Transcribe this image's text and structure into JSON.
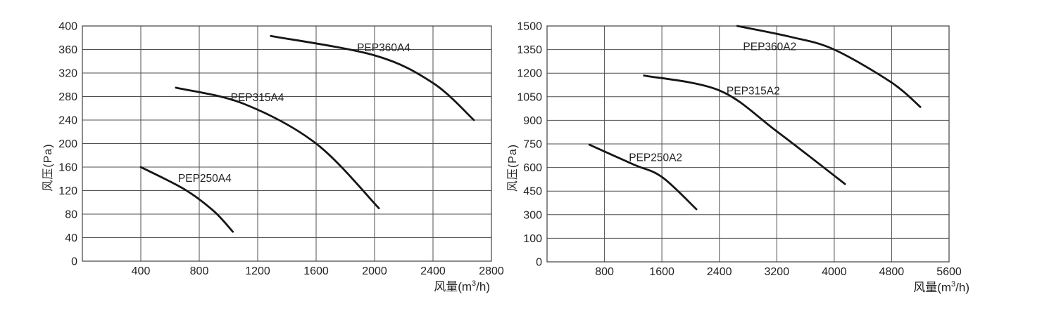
{
  "style": {
    "background": "#ffffff",
    "grid_color": "#4f4f4f",
    "border_color": "#3f3f3f",
    "text_color": "#232323",
    "curve_color": "#161616"
  },
  "chart_data": [
    {
      "type": "line",
      "title": "",
      "xlabel": "风量(m³/h)",
      "xlabel_parts": {
        "prefix": "风量(m",
        "sup": "3",
        "suffix": "/h)"
      },
      "ylabel": "风压(Pa)",
      "xlim": [
        0,
        2800
      ],
      "ylim": [
        0,
        400
      ],
      "grid": true,
      "legend_position": "inline-curve-labels",
      "x_tick_values": [
        400,
        800,
        1200,
        1600,
        2000,
        2400,
        2800
      ],
      "x_tick_labels": [
        "400",
        "800",
        "1200",
        "1600",
        "2000",
        "2400",
        "2800"
      ],
      "y_tick_labels": [
        "0",
        "40",
        "80",
        "120",
        "160",
        "200",
        "240",
        "280",
        "320",
        "360",
        "400"
      ],
      "series": [
        {
          "name": "PEP250A4",
          "points": [
            [
              400,
              160
            ],
            [
              700,
              122
            ],
            [
              900,
              85
            ],
            [
              1030,
              50
            ]
          ],
          "label_xy": [
            655,
            135
          ]
        },
        {
          "name": "PEP315A4",
          "points": [
            [
              640,
              295
            ],
            [
              1100,
              268
            ],
            [
              1600,
              200
            ],
            [
              2030,
              90
            ]
          ],
          "label_xy": [
            1015,
            272
          ]
        },
        {
          "name": "PEP360A4",
          "points": [
            [
              1290,
              383
            ],
            [
              2000,
              350
            ],
            [
              2400,
              303
            ],
            [
              2680,
              240
            ]
          ],
          "label_xy": [
            1880,
            357
          ]
        }
      ]
    },
    {
      "type": "line",
      "title": "",
      "xlabel": "风量(m³/h)",
      "xlabel_parts": {
        "prefix": "风量(m",
        "sup": "3",
        "suffix": "/h)"
      },
      "ylabel": "风压(Pa)",
      "xlim": [
        0,
        5600
      ],
      "ylim": [
        0,
        1500
      ],
      "grid": true,
      "legend_position": "inline-curve-labels",
      "x_tick_values": [
        800,
        1600,
        2400,
        3200,
        4000,
        4800,
        5600
      ],
      "x_tick_labels": [
        "800",
        "1600",
        "2400",
        "3200",
        "4000",
        "4800",
        "5600"
      ],
      "y_tick_labels": [
        "0",
        "100",
        "300",
        "450",
        "600",
        "750",
        "900",
        "1050",
        "1200",
        "1350",
        "1500"
      ],
      "series": [
        {
          "name": "PEP250A2",
          "points": [
            [
              590,
              745
            ],
            [
              1200,
              620
            ],
            [
              1600,
              540
            ],
            [
              2080,
              335
            ]
          ],
          "label_xy": [
            1140,
            640
          ]
        },
        {
          "name": "PEP315A2",
          "points": [
            [
              1350,
              1185
            ],
            [
              2400,
              1090
            ],
            [
              3200,
              830
            ],
            [
              4150,
              495
            ]
          ],
          "label_xy": [
            2500,
            1065
          ]
        },
        {
          "name": "PEP360A2",
          "points": [
            [
              2650,
              1500
            ],
            [
              3400,
              1430
            ],
            [
              4000,
              1350
            ],
            [
              4800,
              1140
            ],
            [
              5200,
              985
            ]
          ],
          "label_xy": [
            2730,
            1345
          ]
        }
      ]
    }
  ]
}
